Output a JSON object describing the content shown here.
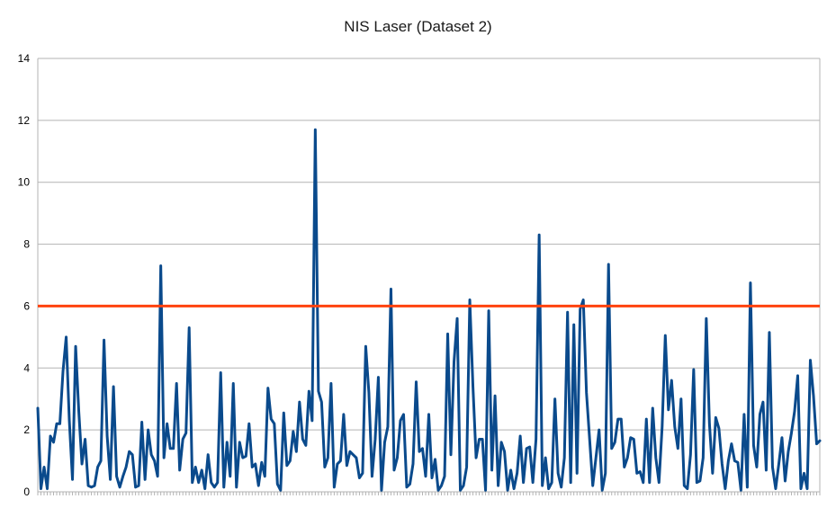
{
  "chart_data": {
    "type": "line",
    "title": "NIS Laser (Dataset 2)",
    "xlabel": "",
    "ylabel": "",
    "ylim": [
      0,
      14
    ],
    "y_ticks": [
      "0",
      "2",
      "4",
      "6",
      "8",
      "10",
      "12",
      "14"
    ],
    "x_tick_labels_visible": false,
    "grid": "horizontal",
    "legend": "none",
    "colors": {
      "series": "#0a4a8c",
      "threshold": "#ff420e",
      "grid": "#b3b3b3"
    },
    "threshold": {
      "value": 6
    },
    "series": [
      {
        "values": [
          2.7,
          0.1,
          0.8,
          0.1,
          1.8,
          1.6,
          2.2,
          2.2,
          3.9,
          5.0,
          2.3,
          0.4,
          4.7,
          2.6,
          0.9,
          1.7,
          0.2,
          0.15,
          0.2,
          0.8,
          1.0,
          4.9,
          1.8,
          0.4,
          3.4,
          0.5,
          0.15,
          0.5,
          0.8,
          1.3,
          1.2,
          0.15,
          0.2,
          2.25,
          0.4,
          2.0,
          1.2,
          1.0,
          0.5,
          7.3,
          1.1,
          2.2,
          1.4,
          1.4,
          3.5,
          0.7,
          1.7,
          1.9,
          5.3,
          0.3,
          0.8,
          0.3,
          0.7,
          0.1,
          1.2,
          0.3,
          0.15,
          0.3,
          3.85,
          0.15,
          1.6,
          0.5,
          3.5,
          0.15,
          1.6,
          1.1,
          1.15,
          2.2,
          0.8,
          0.9,
          0.2,
          0.95,
          0.5,
          3.35,
          2.35,
          2.2,
          0.25,
          0.05,
          2.55,
          0.85,
          1.0,
          1.95,
          1.3,
          2.9,
          1.7,
          1.5,
          3.25,
          2.3,
          11.7,
          3.25,
          2.9,
          0.8,
          1.1,
          3.5,
          0.15,
          0.9,
          1.0,
          2.5,
          0.85,
          1.3,
          1.2,
          1.1,
          0.45,
          0.6,
          4.7,
          3.2,
          0.5,
          1.7,
          3.7,
          0.05,
          1.6,
          2.1,
          6.55,
          0.7,
          1.1,
          2.3,
          2.5,
          0.15,
          0.25,
          0.9,
          3.55,
          1.3,
          1.4,
          0.5,
          2.5,
          0.45,
          1.05,
          0.05,
          0.2,
          0.5,
          5.1,
          1.2,
          4.2,
          5.6,
          0.05,
          0.2,
          0.8,
          6.2,
          3.4,
          1.1,
          1.7,
          1.7,
          0.05,
          5.85,
          0.7,
          3.1,
          0.2,
          1.6,
          1.3,
          0.05,
          0.7,
          0.1,
          0.6,
          1.8,
          0.3,
          1.4,
          1.45,
          0.3,
          1.7,
          8.3,
          0.2,
          1.1,
          0.1,
          0.3,
          3.0,
          0.6,
          0.15,
          1.1,
          5.8,
          0.3,
          5.4,
          0.6,
          5.9,
          6.2,
          3.2,
          1.7,
          0.2,
          1.1,
          2.0,
          0.05,
          0.6,
          7.35,
          1.4,
          1.6,
          2.35,
          2.35,
          0.8,
          1.1,
          1.75,
          1.7,
          0.6,
          0.65,
          0.3,
          2.35,
          0.3,
          2.7,
          1.1,
          0.3,
          2.1,
          5.05,
          2.65,
          3.6,
          2.1,
          1.4,
          3.0,
          0.2,
          0.1,
          1.2,
          3.95,
          0.3,
          0.35,
          1.1,
          5.6,
          2.2,
          0.6,
          2.4,
          2.05,
          0.9,
          0.1,
          1.0,
          1.55,
          1.0,
          0.95,
          0.05,
          2.5,
          0.15,
          6.75,
          1.5,
          0.8,
          2.5,
          2.9,
          0.7,
          5.15,
          0.8,
          0.1,
          0.9,
          1.75,
          0.35,
          1.3,
          1.9,
          2.6,
          3.75,
          0.1,
          0.6,
          0.1,
          4.25,
          3.1,
          1.55,
          1.65
        ]
      }
    ]
  }
}
